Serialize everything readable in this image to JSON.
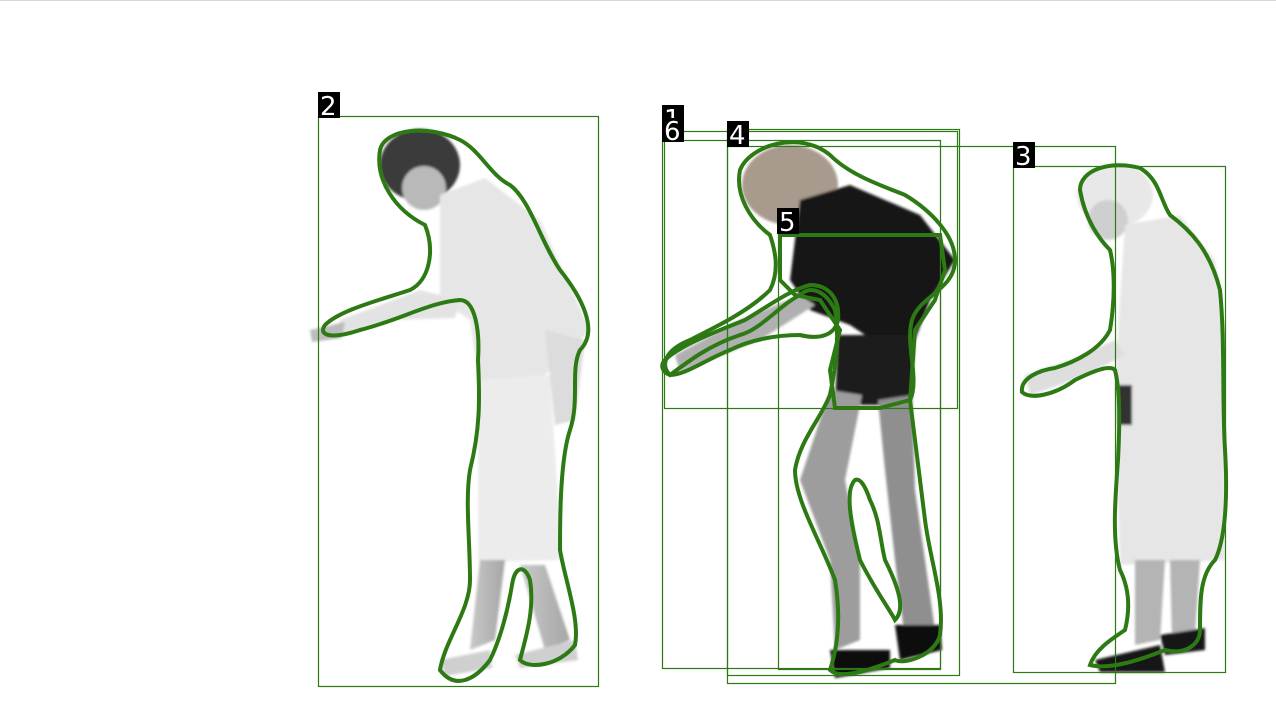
{
  "image": {
    "description_free": true,
    "overlay_color": "#2d7a14",
    "label_bg": "#000000",
    "label_fg": "#ffffff"
  },
  "detections": [
    {
      "label": "1"
    },
    {
      "label": "2"
    },
    {
      "label": "3"
    },
    {
      "label": "4"
    },
    {
      "label": "5"
    },
    {
      "label": "6"
    }
  ]
}
